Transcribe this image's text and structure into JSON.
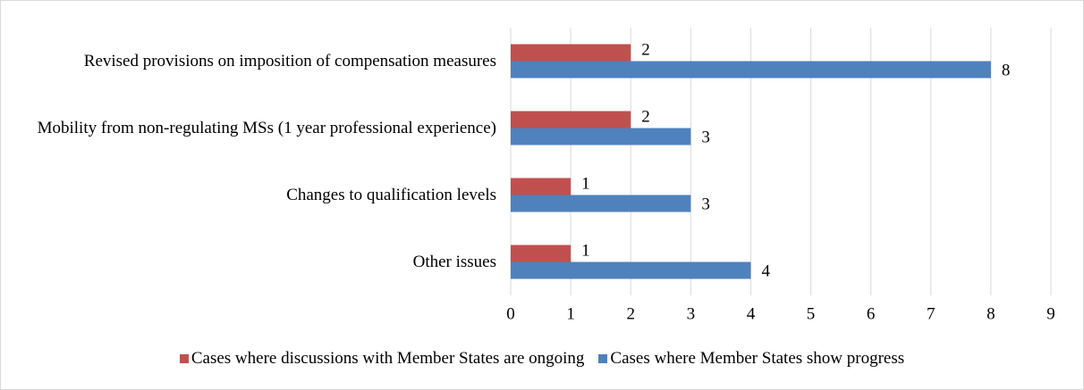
{
  "chart_data": {
    "type": "barh",
    "categories": [
      "Revised provisions on imposition of compensation measures",
      "Mobility from non-regulating MSs (1 year professional experience)",
      "Changes to qualification levels",
      "Other issues"
    ],
    "series": [
      {
        "name": "Cases where discussions with Member States are ongoing",
        "color": "#c0504d",
        "values": [
          2,
          2,
          1,
          1
        ]
      },
      {
        "name": "Cases where Member States show progress",
        "color": "#4f81bd",
        "values": [
          8,
          3,
          3,
          4
        ]
      }
    ],
    "xlim": [
      0,
      9
    ],
    "xticks": [
      0,
      1,
      2,
      3,
      4,
      5,
      6,
      7,
      8,
      9
    ],
    "grid": true,
    "legend": "bottom"
  }
}
